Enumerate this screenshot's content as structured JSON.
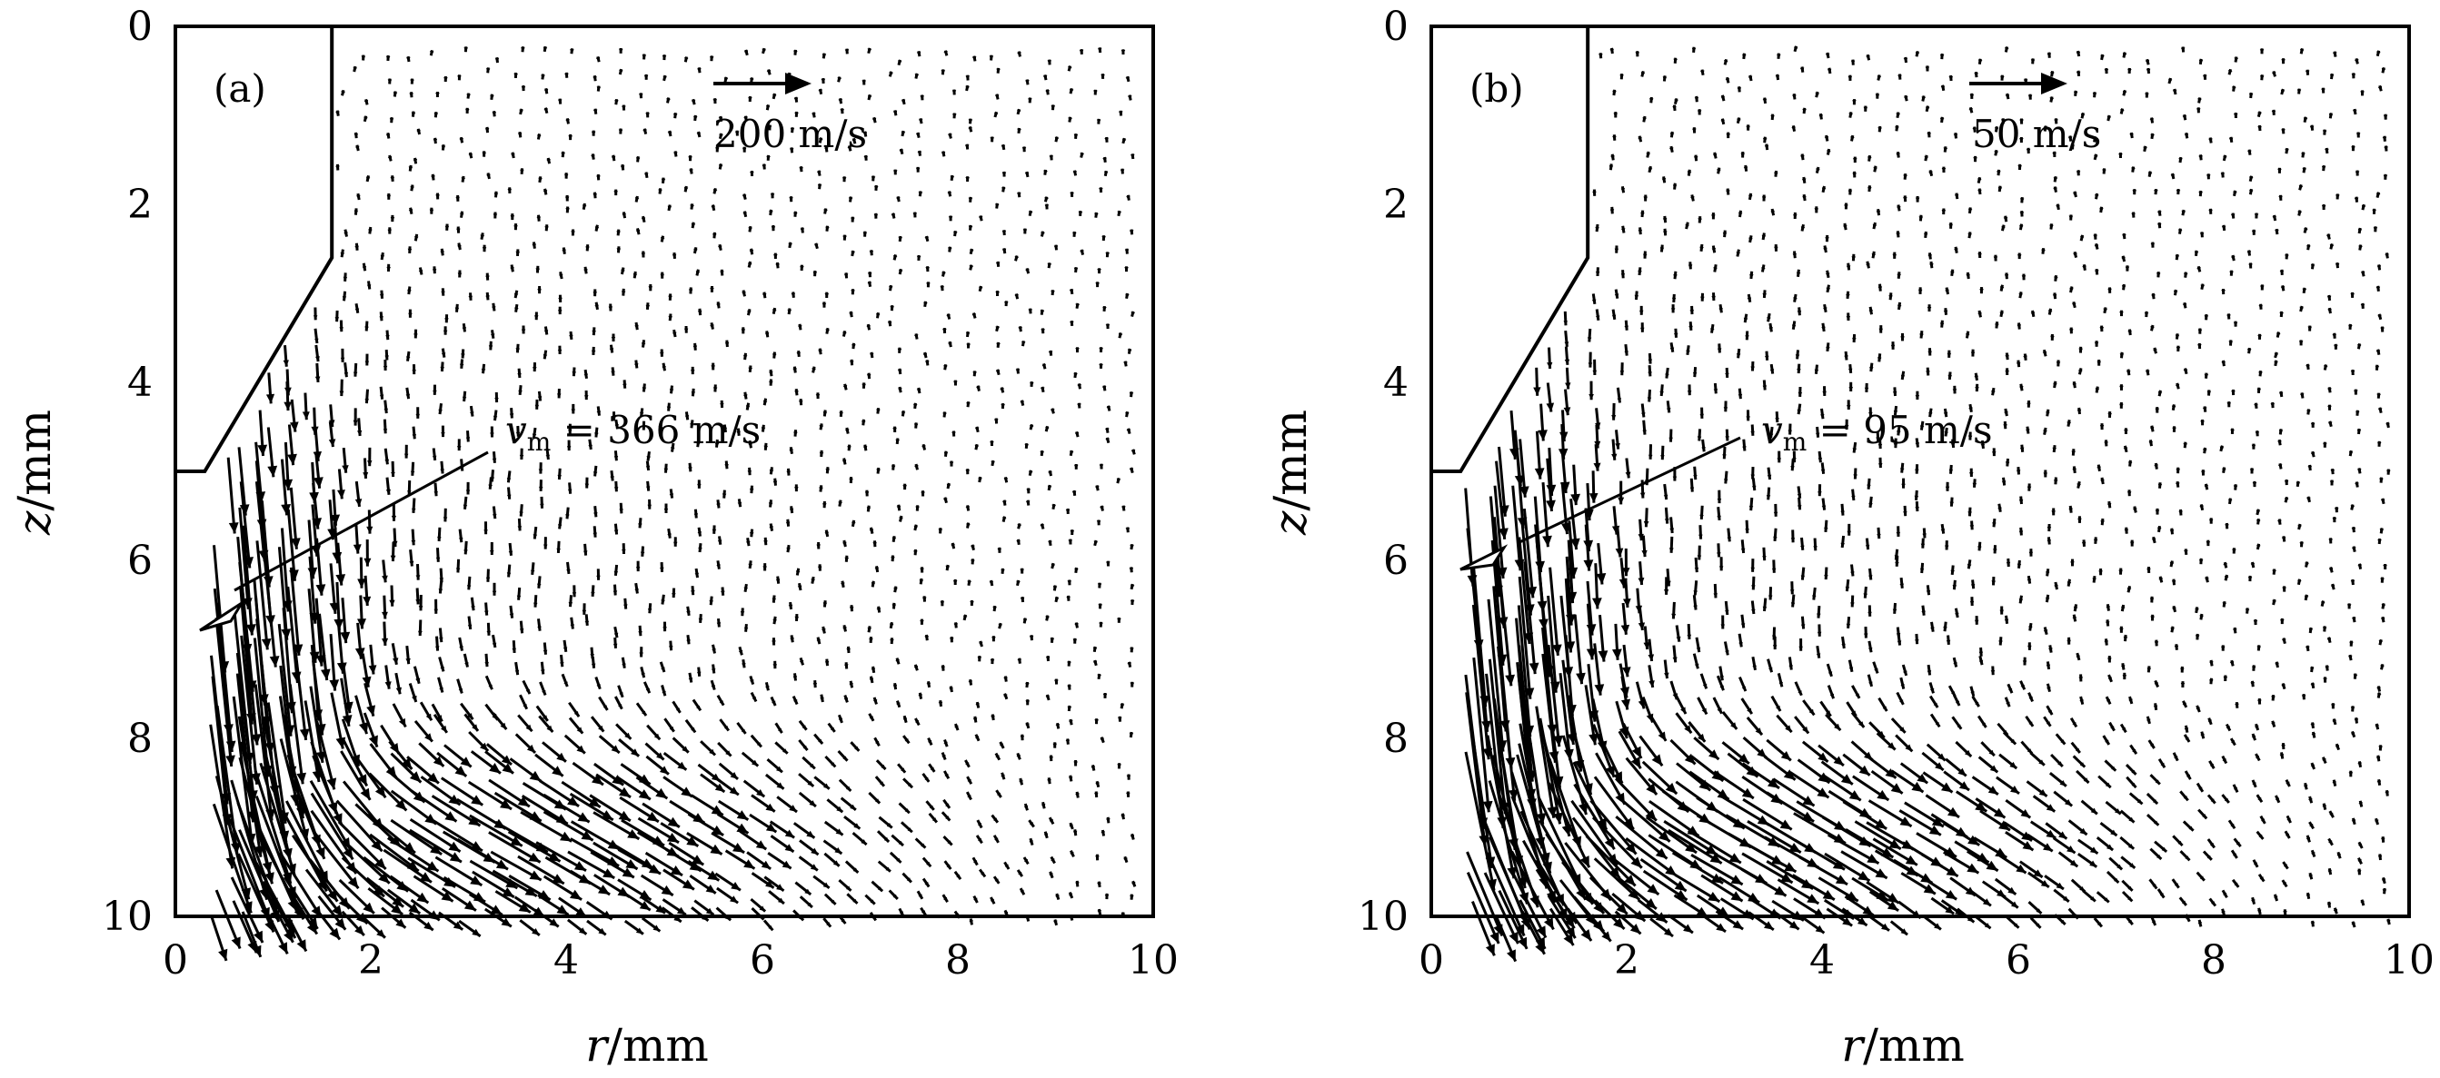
{
  "chart_data": [
    {
      "type": "quiver",
      "panel_label": "(a)",
      "xlabel_var": "r",
      "xlabel_unit": "/mm",
      "ylabel_var": "z",
      "ylabel_unit": "/mm",
      "xlim": [
        0,
        10
      ],
      "ylim": [
        10,
        0
      ],
      "x_ticks": [
        "0",
        "2",
        "4",
        "6",
        "8",
        "10"
      ],
      "y_ticks": [
        "0",
        "2",
        "4",
        "6",
        "8",
        "10"
      ],
      "reference_vector_label": "200 m/s",
      "reference_speed": 200,
      "max_velocity_label_var": "v",
      "max_velocity_label_sub": "m",
      "max_velocity_label_text": " = 366 m/s",
      "max_speed": 366,
      "max_location": [
        0.3,
        6.8
      ],
      "nozzle_outline": [
        [
          0,
          5.0
        ],
        [
          0.3,
          5.0
        ],
        [
          1.6,
          2.6
        ],
        [
          1.6,
          0
        ]
      ]
    },
    {
      "type": "quiver",
      "panel_label": "(b)",
      "xlabel_var": "r",
      "xlabel_unit": "/mm",
      "ylabel_var": "z",
      "ylabel_unit": "/mm",
      "xlim": [
        0,
        10
      ],
      "ylim": [
        10,
        0
      ],
      "x_ticks": [
        "0",
        "2",
        "4",
        "6",
        "8",
        "10"
      ],
      "y_ticks": [
        "0",
        "2",
        "4",
        "6",
        "8",
        "10"
      ],
      "reference_vector_label": "50 m/s",
      "reference_speed": 50,
      "max_velocity_label_var": "v",
      "max_velocity_label_sub": "m",
      "max_velocity_label_text": " = 95 m/s",
      "max_speed": 95,
      "max_location": [
        0.3,
        6.1
      ],
      "nozzle_outline": [
        [
          0,
          5.0
        ],
        [
          0.3,
          5.0
        ],
        [
          1.6,
          2.6
        ],
        [
          1.6,
          0
        ]
      ]
    }
  ]
}
